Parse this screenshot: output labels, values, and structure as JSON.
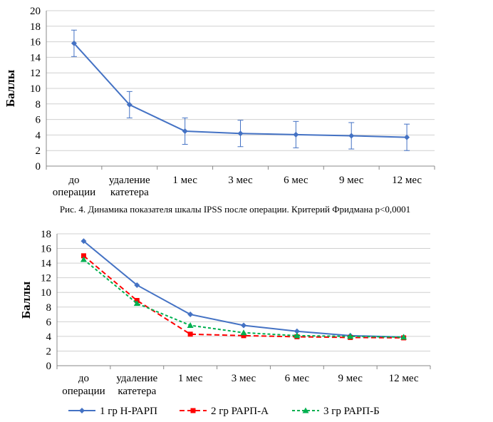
{
  "chart_data": [
    {
      "type": "line",
      "ylabel": "Баллы",
      "ylim": [
        0,
        20
      ],
      "yticks": [
        "0",
        "2",
        "4",
        "6",
        "8",
        "10",
        "12",
        "14",
        "16",
        "18",
        "20"
      ],
      "categories": [
        [
          "до",
          "операции"
        ],
        [
          "удаление",
          "катетера"
        ],
        [
          "1 мес"
        ],
        [
          "3 мес"
        ],
        [
          "6 мес"
        ],
        [
          "9 мес"
        ],
        [
          "12 мес"
        ]
      ],
      "series": [
        {
          "values": [
            15.8,
            7.9,
            4.5,
            4.2,
            4.05,
            3.9,
            3.7
          ],
          "error": [
            1.7,
            1.7,
            1.7,
            1.7,
            1.7,
            1.7,
            1.7
          ],
          "color": "#4472C4",
          "marker": "diamond"
        }
      ],
      "grid": true,
      "caption": "Рис. 4. Динамика показателя шкалы IPSS после операции. Критерий Фридмана p<0,0001"
    },
    {
      "type": "line",
      "ylabel": "Баллы",
      "ylim": [
        0,
        18
      ],
      "yticks": [
        "0",
        "2",
        "4",
        "6",
        "8",
        "10",
        "12",
        "14",
        "16",
        "18"
      ],
      "categories": [
        [
          "до",
          "операции"
        ],
        [
          "удаление",
          "катетера"
        ],
        [
          "1 мес"
        ],
        [
          "3 мес"
        ],
        [
          "6 мес"
        ],
        [
          "9 мес"
        ],
        [
          "12 мес"
        ]
      ],
      "series": [
        {
          "name": "1 гр Н-РАРП",
          "values": [
            17.0,
            11.0,
            7.0,
            5.5,
            4.7,
            4.1,
            3.9
          ],
          "color": "#4472C4",
          "marker": "diamond",
          "dash": ""
        },
        {
          "name": "2 гр РАРП-А",
          "values": [
            15.0,
            8.9,
            4.3,
            4.1,
            3.95,
            3.85,
            3.8
          ],
          "color": "#FF0000",
          "marker": "square",
          "dash": "7,4"
        },
        {
          "name": "3 гр РАРП-Б",
          "values": [
            14.5,
            8.5,
            5.5,
            4.5,
            4.1,
            4.0,
            3.9
          ],
          "color": "#00B050",
          "marker": "triangle",
          "dash": "4,3"
        }
      ],
      "grid": true,
      "legend_position": "bottom"
    }
  ]
}
